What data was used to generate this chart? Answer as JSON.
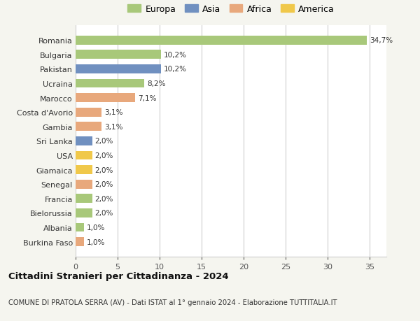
{
  "categories": [
    "Burkina Faso",
    "Albania",
    "Bielorussia",
    "Francia",
    "Senegal",
    "Giamaica",
    "USA",
    "Sri Lanka",
    "Gambia",
    "Costa d'Avorio",
    "Marocco",
    "Ucraina",
    "Pakistan",
    "Bulgaria",
    "Romania"
  ],
  "values": [
    1.0,
    1.0,
    2.0,
    2.0,
    2.0,
    2.0,
    2.0,
    2.0,
    3.1,
    3.1,
    7.1,
    8.2,
    10.2,
    10.2,
    34.7
  ],
  "labels": [
    "1,0%",
    "1,0%",
    "2,0%",
    "2,0%",
    "2,0%",
    "2,0%",
    "2,0%",
    "2,0%",
    "3,1%",
    "3,1%",
    "7,1%",
    "8,2%",
    "10,2%",
    "10,2%",
    "34,7%"
  ],
  "colors": [
    "#e8a87c",
    "#a8c87a",
    "#a8c87a",
    "#a8c87a",
    "#e8a87c",
    "#f0c84a",
    "#f0c84a",
    "#7090c0",
    "#e8a87c",
    "#e8a87c",
    "#e8a87c",
    "#a8c87a",
    "#7090c0",
    "#a8c87a",
    "#a8c87a"
  ],
  "legend_labels": [
    "Europa",
    "Asia",
    "Africa",
    "America"
  ],
  "legend_colors": [
    "#a8c87a",
    "#7090c0",
    "#e8a87c",
    "#f0c84a"
  ],
  "title": "Cittadini Stranieri per Cittadinanza - 2024",
  "subtitle": "COMUNE DI PRATOLA SERRA (AV) - Dati ISTAT al 1° gennaio 2024 - Elaborazione TUTTITALIA.IT",
  "xlim": [
    0,
    37
  ],
  "background_color": "#f5f5ef",
  "bar_background": "#ffffff",
  "grid_color": "#cccccc"
}
